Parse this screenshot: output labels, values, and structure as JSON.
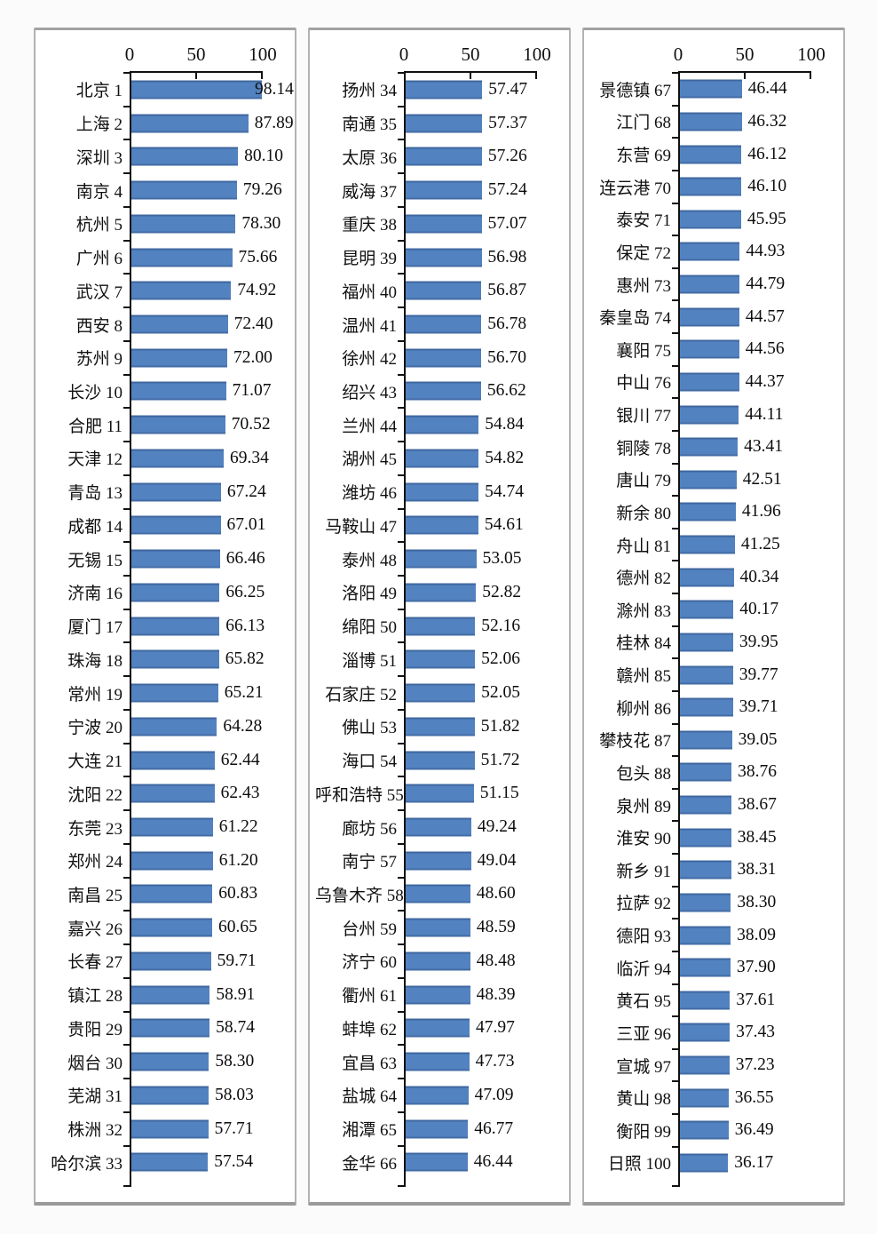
{
  "style": {
    "bar_color": "#5282bf",
    "axis_color": "#111111",
    "panel_background": "#ffffff",
    "page_background": "#fbfbfb"
  },
  "axis": {
    "t0": "0",
    "t50": "50",
    "t100": "100"
  },
  "chart_data": [
    {
      "type": "bar",
      "title": "",
      "xlabel": "",
      "ylabel": "",
      "xlim": [
        0,
        100
      ],
      "x_ticks": [
        0,
        50,
        100
      ],
      "orientation": "horizontal",
      "items": [
        {
          "city": "北京",
          "rank": 1,
          "score": "98.14"
        },
        {
          "city": "上海",
          "rank": 2,
          "score": "87.89"
        },
        {
          "city": "深圳",
          "rank": 3,
          "score": "80.10"
        },
        {
          "city": "南京",
          "rank": 4,
          "score": "79.26"
        },
        {
          "city": "杭州",
          "rank": 5,
          "score": "78.30"
        },
        {
          "city": "广州",
          "rank": 6,
          "score": "75.66"
        },
        {
          "city": "武汉",
          "rank": 7,
          "score": "74.92"
        },
        {
          "city": "西安",
          "rank": 8,
          "score": "72.40"
        },
        {
          "city": "苏州",
          "rank": 9,
          "score": "72.00"
        },
        {
          "city": "长沙",
          "rank": 10,
          "score": "71.07"
        },
        {
          "city": "合肥",
          "rank": 11,
          "score": "70.52"
        },
        {
          "city": "天津",
          "rank": 12,
          "score": "69.34"
        },
        {
          "city": "青岛",
          "rank": 13,
          "score": "67.24"
        },
        {
          "city": "成都",
          "rank": 14,
          "score": "67.01"
        },
        {
          "city": "无锡",
          "rank": 15,
          "score": "66.46"
        },
        {
          "city": "济南",
          "rank": 16,
          "score": "66.25"
        },
        {
          "city": "厦门",
          "rank": 17,
          "score": "66.13"
        },
        {
          "city": "珠海",
          "rank": 18,
          "score": "65.82"
        },
        {
          "city": "常州",
          "rank": 19,
          "score": "65.21"
        },
        {
          "city": "宁波",
          "rank": 20,
          "score": "64.28"
        },
        {
          "city": "大连",
          "rank": 21,
          "score": "62.44"
        },
        {
          "city": "沈阳",
          "rank": 22,
          "score": "62.43"
        },
        {
          "city": "东莞",
          "rank": 23,
          "score": "61.22"
        },
        {
          "city": "郑州",
          "rank": 24,
          "score": "61.20"
        },
        {
          "city": "南昌",
          "rank": 25,
          "score": "60.83"
        },
        {
          "city": "嘉兴",
          "rank": 26,
          "score": "60.65"
        },
        {
          "city": "长春",
          "rank": 27,
          "score": "59.71"
        },
        {
          "city": "镇江",
          "rank": 28,
          "score": "58.91"
        },
        {
          "city": "贵阳",
          "rank": 29,
          "score": "58.74"
        },
        {
          "city": "烟台",
          "rank": 30,
          "score": "58.30"
        },
        {
          "city": "芜湖",
          "rank": 31,
          "score": "58.03"
        },
        {
          "city": "株洲",
          "rank": 32,
          "score": "57.71"
        },
        {
          "city": "哈尔滨",
          "rank": 33,
          "score": "57.54"
        }
      ]
    },
    {
      "type": "bar",
      "title": "",
      "xlabel": "",
      "ylabel": "",
      "xlim": [
        0,
        100
      ],
      "x_ticks": [
        0,
        50,
        100
      ],
      "orientation": "horizontal",
      "items": [
        {
          "city": "扬州",
          "rank": 34,
          "score": "57.47"
        },
        {
          "city": "南通",
          "rank": 35,
          "score": "57.37"
        },
        {
          "city": "太原",
          "rank": 36,
          "score": "57.26"
        },
        {
          "city": "威海",
          "rank": 37,
          "score": "57.24"
        },
        {
          "city": "重庆",
          "rank": 38,
          "score": "57.07"
        },
        {
          "city": "昆明",
          "rank": 39,
          "score": "56.98"
        },
        {
          "city": "福州",
          "rank": 40,
          "score": "56.87"
        },
        {
          "city": "温州",
          "rank": 41,
          "score": "56.78"
        },
        {
          "city": "徐州",
          "rank": 42,
          "score": "56.70"
        },
        {
          "city": "绍兴",
          "rank": 43,
          "score": "56.62"
        },
        {
          "city": "兰州",
          "rank": 44,
          "score": "54.84"
        },
        {
          "city": "湖州",
          "rank": 45,
          "score": "54.82"
        },
        {
          "city": "潍坊",
          "rank": 46,
          "score": "54.74"
        },
        {
          "city": "马鞍山",
          "rank": 47,
          "score": "54.61"
        },
        {
          "city": "泰州",
          "rank": 48,
          "score": "53.05"
        },
        {
          "city": "洛阳",
          "rank": 49,
          "score": "52.82"
        },
        {
          "city": "绵阳",
          "rank": 50,
          "score": "52.16"
        },
        {
          "city": "淄博",
          "rank": 51,
          "score": "52.06"
        },
        {
          "city": "石家庄",
          "rank": 52,
          "score": "52.05"
        },
        {
          "city": "佛山",
          "rank": 53,
          "score": "51.82"
        },
        {
          "city": "海口",
          "rank": 54,
          "score": "51.72"
        },
        {
          "city": "呼和浩特",
          "rank": 55,
          "score": "51.15"
        },
        {
          "city": "廊坊",
          "rank": 56,
          "score": "49.24"
        },
        {
          "city": "南宁",
          "rank": 57,
          "score": "49.04"
        },
        {
          "city": "乌鲁木齐",
          "rank": 58,
          "score": "48.60"
        },
        {
          "city": "台州",
          "rank": 59,
          "score": "48.59"
        },
        {
          "city": "济宁",
          "rank": 60,
          "score": "48.48"
        },
        {
          "city": "衢州",
          "rank": 61,
          "score": "48.39"
        },
        {
          "city": "蚌埠",
          "rank": 62,
          "score": "47.97"
        },
        {
          "city": "宜昌",
          "rank": 63,
          "score": "47.73"
        },
        {
          "city": "盐城",
          "rank": 64,
          "score": "47.09"
        },
        {
          "city": "湘潭",
          "rank": 65,
          "score": "46.77"
        },
        {
          "city": "金华",
          "rank": 66,
          "score": "46.44"
        }
      ]
    },
    {
      "type": "bar",
      "title": "",
      "xlabel": "",
      "ylabel": "",
      "xlim": [
        0,
        100
      ],
      "x_ticks": [
        0,
        50,
        100
      ],
      "orientation": "horizontal",
      "items": [
        {
          "city": "景德镇",
          "rank": 67,
          "score": "46.44"
        },
        {
          "city": "江门",
          "rank": 68,
          "score": "46.32"
        },
        {
          "city": "东营",
          "rank": 69,
          "score": "46.12"
        },
        {
          "city": "连云港",
          "rank": 70,
          "score": "46.10"
        },
        {
          "city": "泰安",
          "rank": 71,
          "score": "45.95"
        },
        {
          "city": "保定",
          "rank": 72,
          "score": "44.93"
        },
        {
          "city": "惠州",
          "rank": 73,
          "score": "44.79"
        },
        {
          "city": "秦皇岛",
          "rank": 74,
          "score": "44.57"
        },
        {
          "city": "襄阳",
          "rank": 75,
          "score": "44.56"
        },
        {
          "city": "中山",
          "rank": 76,
          "score": "44.37"
        },
        {
          "city": "银川",
          "rank": 77,
          "score": "44.11"
        },
        {
          "city": "铜陵",
          "rank": 78,
          "score": "43.41"
        },
        {
          "city": "唐山",
          "rank": 79,
          "score": "42.51"
        },
        {
          "city": "新余",
          "rank": 80,
          "score": "41.96"
        },
        {
          "city": "舟山",
          "rank": 81,
          "score": "41.25"
        },
        {
          "city": "德州",
          "rank": 82,
          "score": "40.34"
        },
        {
          "city": "滁州",
          "rank": 83,
          "score": "40.17"
        },
        {
          "city": "桂林",
          "rank": 84,
          "score": "39.95"
        },
        {
          "city": "赣州",
          "rank": 85,
          "score": "39.77"
        },
        {
          "city": "柳州",
          "rank": 86,
          "score": "39.71"
        },
        {
          "city": "攀枝花",
          "rank": 87,
          "score": "39.05"
        },
        {
          "city": "包头",
          "rank": 88,
          "score": "38.76"
        },
        {
          "city": "泉州",
          "rank": 89,
          "score": "38.67"
        },
        {
          "city": "淮安",
          "rank": 90,
          "score": "38.45"
        },
        {
          "city": "新乡",
          "rank": 91,
          "score": "38.31"
        },
        {
          "city": "拉萨",
          "rank": 92,
          "score": "38.30"
        },
        {
          "city": "德阳",
          "rank": 93,
          "score": "38.09"
        },
        {
          "city": "临沂",
          "rank": 94,
          "score": "37.90"
        },
        {
          "city": "黄石",
          "rank": 95,
          "score": "37.61"
        },
        {
          "city": "三亚",
          "rank": 96,
          "score": "37.43"
        },
        {
          "city": "宣城",
          "rank": 97,
          "score": "37.23"
        },
        {
          "city": "黄山",
          "rank": 98,
          "score": "36.55"
        },
        {
          "city": "衡阳",
          "rank": 99,
          "score": "36.49"
        },
        {
          "city": "日照",
          "rank": 100,
          "score": "36.17"
        }
      ]
    }
  ]
}
